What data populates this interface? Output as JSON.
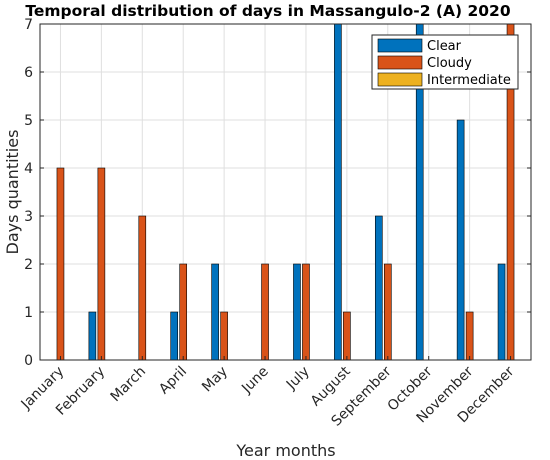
{
  "chart_data": {
    "type": "bar",
    "title": "Temporal distribution of days in  Massangulo-2 (A) 2020",
    "xlabel": "Year months",
    "ylabel": "Days quantities",
    "categories": [
      "January",
      "February",
      "March",
      "April",
      "May",
      "June",
      "July",
      "August",
      "September",
      "October",
      "November",
      "December"
    ],
    "ylim": [
      0,
      7
    ],
    "yticks": [
      0,
      1,
      2,
      3,
      4,
      5,
      6,
      7
    ],
    "grid": true,
    "legend_position": "top-right",
    "series": [
      {
        "name": "Clear",
        "color": "#0072bd",
        "values": [
          0,
          1,
          0,
          1,
          2,
          0,
          2,
          7,
          3,
          7,
          5,
          2
        ]
      },
      {
        "name": "Cloudy",
        "color": "#d95319",
        "values": [
          4,
          4,
          3,
          2,
          1,
          2,
          2,
          1,
          2,
          0,
          1,
          7
        ]
      },
      {
        "name": "Intermediate",
        "color": "#edb120",
        "values": [
          0,
          0,
          0,
          0,
          0,
          0,
          0,
          0,
          0,
          0,
          0,
          0
        ]
      }
    ]
  }
}
